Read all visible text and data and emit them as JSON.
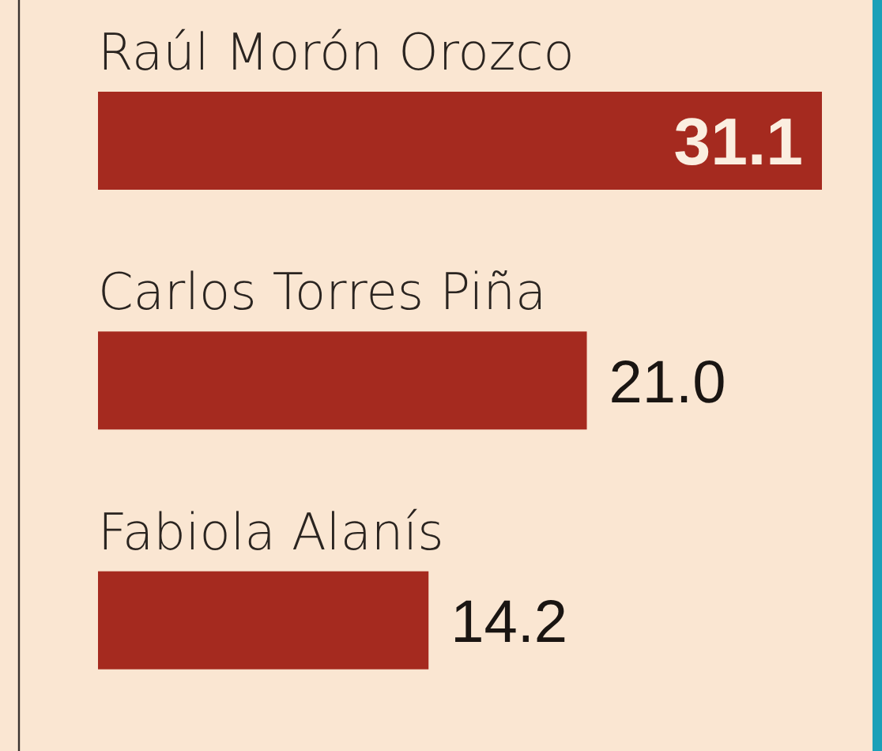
{
  "chart_data": {
    "type": "bar",
    "orientation": "horizontal",
    "categories": [
      "Raúl Morón Orozco",
      "Carlos Torres Piña",
      "Fabiola Alanís"
    ],
    "values": [
      31.1,
      21.0,
      14.2
    ],
    "value_labels": [
      "31.1",
      "21.0",
      "14.2"
    ],
    "color": "#a52a1f"
  }
}
